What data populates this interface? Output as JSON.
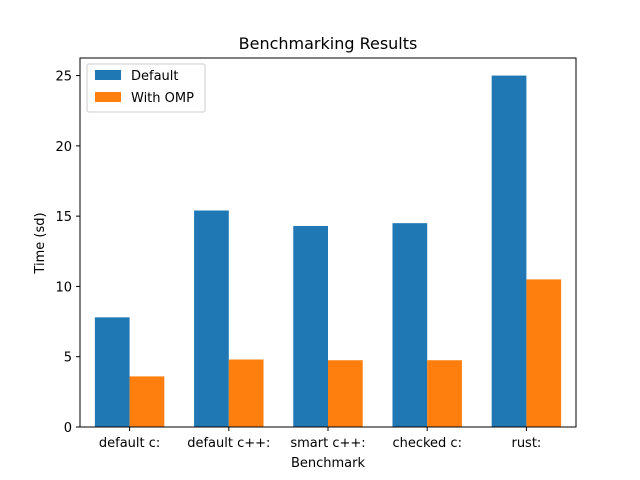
{
  "chart_data": {
    "type": "bar",
    "title": "Benchmarking Results",
    "xlabel": "Benchmark",
    "ylabel": "Time (sd)",
    "categories": [
      "default c:",
      "default c++:",
      "smart c++:",
      "checked c:",
      "rust:"
    ],
    "series": [
      {
        "name": "Default",
        "values": [
          7.8,
          15.4,
          14.3,
          14.5,
          25.0
        ],
        "color": "#1f77b4"
      },
      {
        "name": "With OMP",
        "values": [
          3.6,
          4.8,
          4.75,
          4.75,
          10.5
        ],
        "color": "#ff7f0e"
      }
    ],
    "ylim": [
      0,
      26.25
    ],
    "yticks": [
      0,
      5,
      10,
      15,
      20,
      25
    ],
    "grid": false,
    "legend": "top-left"
  }
}
